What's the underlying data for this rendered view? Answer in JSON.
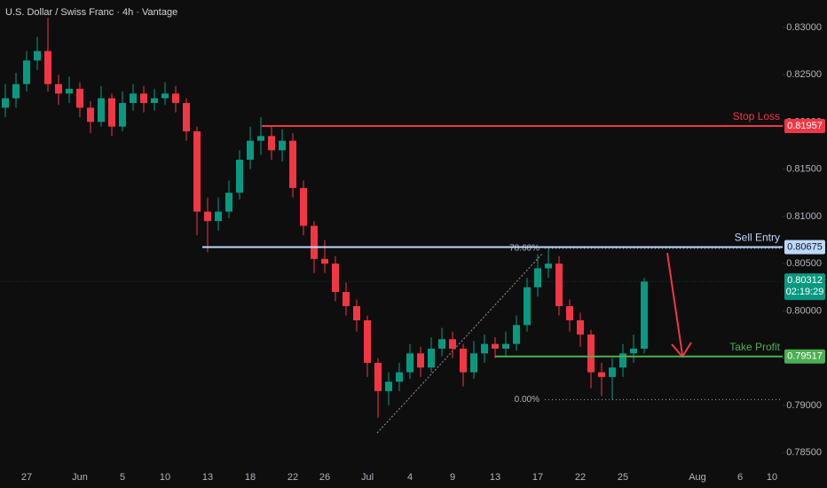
{
  "chart_data": {
    "type": "candlestick",
    "title": "U.S. Dollar / Swiss Franc · 4h · Vantage",
    "categories": [
      null,
      null,
      "27",
      null,
      null,
      null,
      null,
      "Jun",
      null,
      null,
      null,
      "5",
      null,
      null,
      null,
      "10",
      null,
      null,
      null,
      "13",
      null,
      null,
      null,
      "18",
      null,
      null,
      null,
      "22",
      null,
      null,
      "26",
      null,
      null,
      null,
      "Jul",
      null,
      null,
      null,
      "4",
      null,
      null,
      null,
      "9",
      null,
      null,
      null,
      "13",
      null,
      null,
      null,
      "17",
      null,
      null,
      null,
      "22",
      null,
      null,
      null,
      "25",
      null,
      null,
      null,
      null,
      null,
      null,
      "Aug",
      null,
      null,
      null,
      "6",
      null,
      null,
      "10"
    ],
    "open": [
      0.8215,
      0.8225,
      0.824,
      0.8265,
      0.8275,
      0.824,
      0.823,
      0.8235,
      0.8215,
      0.82,
      0.8225,
      0.8195,
      0.822,
      0.823,
      0.822,
      0.8225,
      0.823,
      0.822,
      0.819,
      0.8105,
      0.8095,
      0.8105,
      0.8125,
      0.816,
      0.818,
      0.8185,
      0.817,
      0.818,
      0.813,
      0.809,
      0.8055,
      0.805,
      0.802,
      0.8005,
      0.799,
      0.7945,
      0.7915,
      0.7925,
      0.7935,
      0.7955,
      0.794,
      0.796,
      0.797,
      0.796,
      0.7935,
      0.7955,
      0.7965,
      0.796,
      0.7965,
      0.7985,
      0.8025,
      0.8045,
      0.805,
      0.8005,
      0.799,
      0.7975,
      0.7935,
      0.793,
      0.794,
      0.7955,
      0.796,
      null,
      null,
      null,
      null,
      null,
      null,
      null,
      null,
      null,
      null,
      null,
      null
    ],
    "high": [
      0.824,
      0.8252,
      0.8275,
      0.829,
      0.831,
      0.825,
      0.8248,
      0.8242,
      0.8222,
      0.8238,
      0.823,
      0.8232,
      0.824,
      0.8238,
      0.8235,
      0.8242,
      0.8238,
      0.8225,
      0.8195,
      0.812,
      0.812,
      0.8138,
      0.817,
      0.8195,
      0.8205,
      0.8195,
      0.8192,
      0.8188,
      0.8138,
      0.8095,
      0.8075,
      0.8058,
      0.803,
      0.8012,
      0.7995,
      0.795,
      0.7935,
      0.7945,
      0.7965,
      0.7962,
      0.7972,
      0.7982,
      0.7978,
      0.7965,
      0.7968,
      0.7975,
      0.7972,
      0.7978,
      0.7995,
      0.8035,
      0.806,
      0.8066,
      0.8058,
      0.8012,
      0.7998,
      0.798,
      0.7945,
      0.795,
      0.7965,
      0.7975,
      0.8035,
      null,
      null,
      null,
      null,
      null,
      null,
      null,
      null,
      null,
      null,
      null,
      null
    ],
    "low": [
      0.8205,
      0.8215,
      0.8232,
      0.8255,
      0.8232,
      0.8218,
      0.822,
      0.8205,
      0.8188,
      0.8195,
      0.8185,
      0.819,
      0.8212,
      0.821,
      0.8212,
      0.8218,
      0.821,
      0.818,
      0.808,
      0.8062,
      0.8085,
      0.8098,
      0.8118,
      0.815,
      0.8165,
      0.816,
      0.8158,
      0.812,
      0.808,
      0.804,
      0.804,
      0.801,
      0.7995,
      0.7978,
      0.793,
      0.7887,
      0.79,
      0.7915,
      0.7928,
      0.793,
      0.7935,
      0.7952,
      0.795,
      0.792,
      0.7928,
      0.7945,
      0.795,
      0.7952,
      0.7958,
      0.7978,
      0.8015,
      0.8035,
      0.7995,
      0.7978,
      0.7962,
      0.7918,
      0.791,
      0.7906,
      0.793,
      0.7945,
      0.7955,
      null,
      null,
      null,
      null,
      null,
      null,
      null,
      null,
      null,
      null,
      null,
      null
    ],
    "close": [
      0.8225,
      0.824,
      0.8265,
      0.8275,
      0.824,
      0.823,
      0.8235,
      0.8215,
      0.82,
      0.8225,
      0.8195,
      0.822,
      0.823,
      0.822,
      0.8225,
      0.823,
      0.822,
      0.819,
      0.8105,
      0.8095,
      0.8105,
      0.8125,
      0.816,
      0.818,
      0.8185,
      0.817,
      0.818,
      0.813,
      0.809,
      0.8055,
      0.805,
      0.802,
      0.8005,
      0.799,
      0.7945,
      0.7915,
      0.7925,
      0.7935,
      0.7955,
      0.794,
      0.796,
      0.797,
      0.796,
      0.7935,
      0.7955,
      0.7965,
      0.796,
      0.7965,
      0.7985,
      0.8025,
      0.8045,
      0.805,
      0.8005,
      0.799,
      0.7975,
      0.7935,
      0.793,
      0.794,
      0.7955,
      0.796,
      0.8031,
      null,
      null,
      null,
      null,
      null,
      null,
      null,
      null,
      null,
      null,
      null,
      null
    ],
    "up_color": "#089981",
    "down_color": "#f23645",
    "ylim": [
      0.7836,
      0.8329
    ],
    "yticks": [
      {
        "value": 0.83,
        "label": "0.83000"
      },
      {
        "value": 0.825,
        "label": "0.82500"
      },
      {
        "value": 0.82,
        "label": "0.82000"
      },
      {
        "value": 0.815,
        "label": "0.81500"
      },
      {
        "value": 0.81,
        "label": "0.81000"
      },
      {
        "value": 0.805,
        "label": "0.80500"
      },
      {
        "value": 0.8,
        "label": "0.80000"
      },
      {
        "value": 0.795,
        "label": "0.79500"
      },
      {
        "value": 0.79,
        "label": "0.79000"
      },
      {
        "value": 0.785,
        "label": "0.78500"
      }
    ],
    "levels": [
      {
        "name": "Stop Loss",
        "value": 0.81957,
        "value_label": "0.81957",
        "color": "#f23645"
      },
      {
        "name": "Sell Entry",
        "value": 0.80675,
        "value_label": "0.80675",
        "color": "#bbd9fb"
      },
      {
        "name": "Take Profit",
        "value": 0.79517,
        "value_label": "0.79517",
        "color": "#4caf50"
      }
    ],
    "fib": [
      {
        "label": "78.60%",
        "value": 0.8066
      },
      {
        "label": "0.00%",
        "value": 0.7906
      }
    ],
    "last_price": {
      "value": 0.80312,
      "value_label": "0.80312",
      "countdown": "02:19:29",
      "color": "#089981"
    }
  }
}
